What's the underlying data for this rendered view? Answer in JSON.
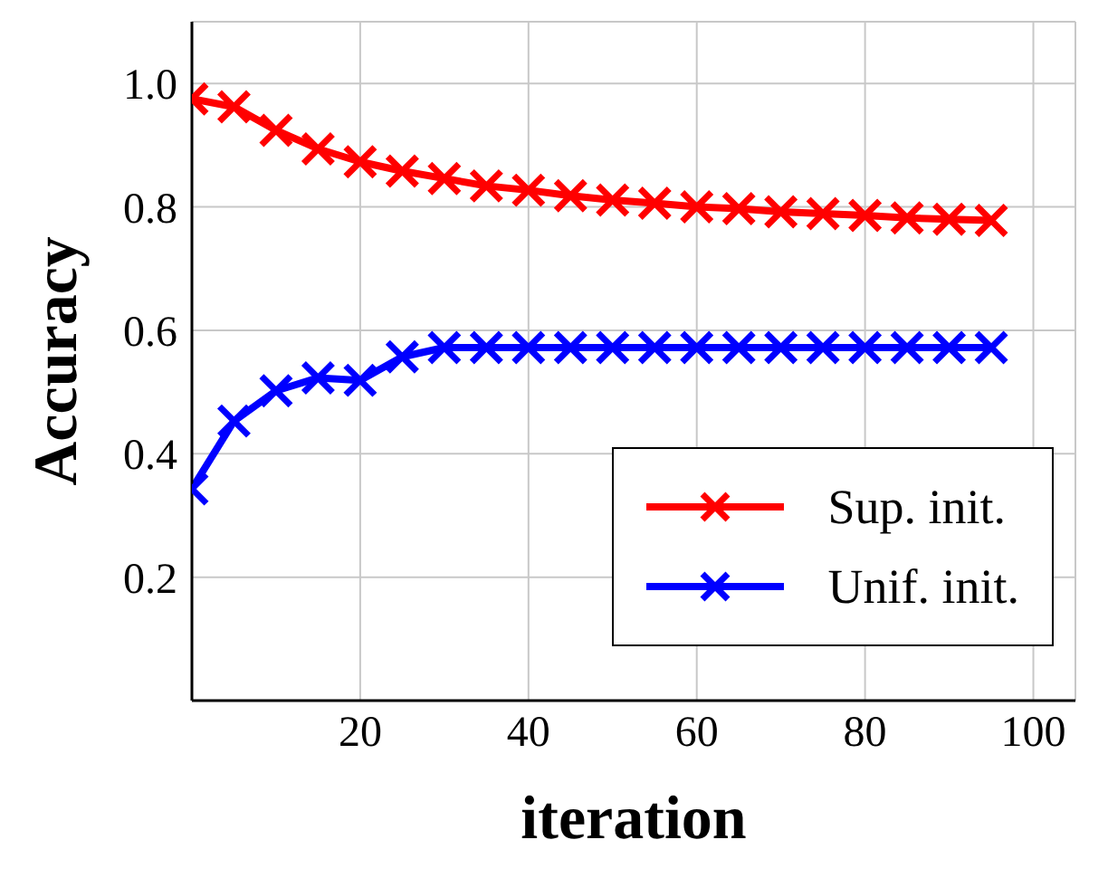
{
  "chart_data": {
    "type": "line",
    "xlabel": "iteration",
    "ylabel": "Accuracy",
    "x": [
      0,
      5,
      10,
      15,
      20,
      25,
      30,
      35,
      40,
      45,
      50,
      55,
      60,
      65,
      70,
      75,
      80,
      85,
      90,
      95
    ],
    "series": [
      {
        "name": "Sup. init.",
        "color": "#ff0000",
        "marker": "cross",
        "values": [
          0.975,
          0.962,
          0.924,
          0.894,
          0.873,
          0.858,
          0.846,
          0.834,
          0.827,
          0.818,
          0.811,
          0.806,
          0.8,
          0.797,
          0.792,
          0.789,
          0.786,
          0.782,
          0.78,
          0.778
        ]
      },
      {
        "name": "Unif. init.",
        "color": "#0000ff",
        "marker": "cross",
        "values": [
          0.343,
          0.453,
          0.502,
          0.523,
          0.519,
          0.557,
          0.572,
          0.572,
          0.572,
          0.572,
          0.572,
          0.572,
          0.572,
          0.572,
          0.572,
          0.572,
          0.572,
          0.572,
          0.572,
          0.572
        ]
      }
    ],
    "xlim": [
      0,
      105
    ],
    "ylim": [
      0,
      1.1
    ],
    "xticks": [
      20,
      40,
      60,
      80,
      100
    ],
    "yticks": [
      0.2,
      0.4,
      0.6,
      0.8,
      {
        "value": 1,
        "label": "1.0"
      }
    ],
    "grid": true,
    "legend": "bottom right",
    "line_style": "solid"
  }
}
